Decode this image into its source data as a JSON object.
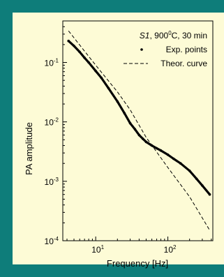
{
  "theme": {
    "background": "#0e7d7a",
    "panel": "#fdfbd6"
  },
  "chart_data": {
    "type": "line",
    "xscale": "log",
    "yscale": "log",
    "xlim": [
      3.5,
      420
    ],
    "ylim": [
      0.0001,
      0.5
    ],
    "xlabel": "Frequency [Hz]",
    "ylabel": "PA amplitude",
    "xticks": [
      {
        "value": 10,
        "base": "10",
        "exp": "1"
      },
      {
        "value": 100,
        "base": "10",
        "exp": "2"
      }
    ],
    "yticks": [
      {
        "value": 0.1,
        "base": "10",
        "exp": "-1"
      },
      {
        "value": 0.01,
        "base": "10",
        "exp": "-2"
      },
      {
        "value": 0.001,
        "base": "10",
        "exp": "-3"
      },
      {
        "value": 0.0001,
        "base": "10",
        "exp": "-4"
      }
    ],
    "legend": {
      "position": "top-right",
      "title_italic": "S1",
      "title_rest": ", 900",
      "title_sup": "0",
      "title_end": "C, 30 min",
      "entries": [
        "Exp. points",
        "Theor. curve"
      ]
    },
    "series": [
      {
        "name": "Exp. points",
        "style": "points",
        "x": [
          4.2,
          5,
          6,
          7,
          8,
          10,
          12,
          15,
          20,
          25,
          30,
          35,
          40,
          45,
          50,
          60,
          70,
          80,
          100,
          120,
          150,
          200,
          250,
          300,
          380
        ],
        "y": [
          0.23,
          0.19,
          0.15,
          0.12,
          0.1,
          0.072,
          0.055,
          0.037,
          0.022,
          0.014,
          0.0095,
          0.0075,
          0.006,
          0.0052,
          0.0046,
          0.004,
          0.0036,
          0.0033,
          0.0028,
          0.0024,
          0.002,
          0.0015,
          0.0011,
          0.00085,
          0.0006
        ]
      },
      {
        "name": "Theor. curve",
        "style": "dashed",
        "x": [
          4.2,
          10,
          20,
          30,
          50,
          100,
          200,
          380
        ],
        "y": [
          0.34,
          0.09,
          0.032,
          0.016,
          0.0055,
          0.0017,
          0.00055,
          0.00015
        ]
      }
    ]
  }
}
